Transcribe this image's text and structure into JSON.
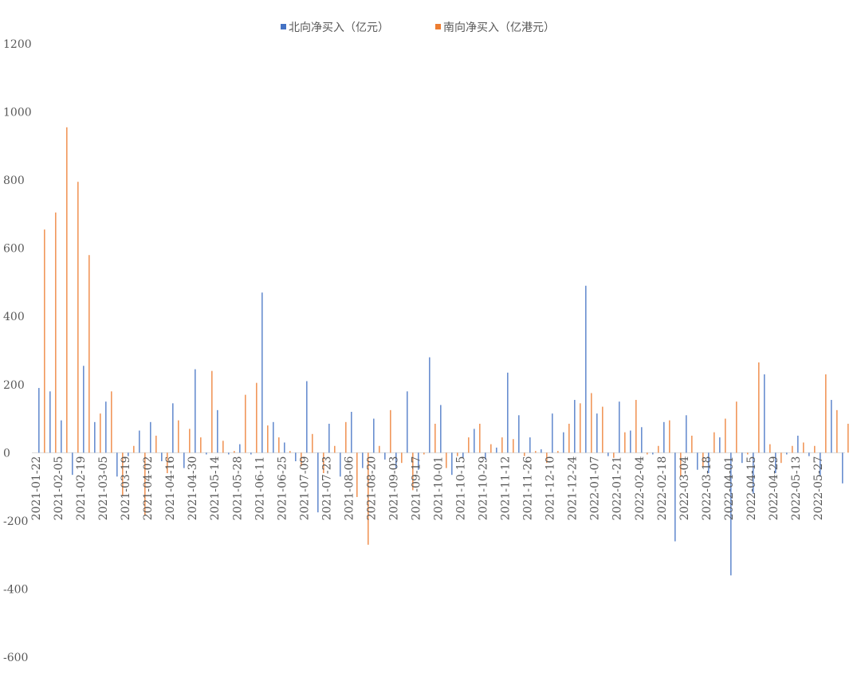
{
  "chart_data": {
    "type": "bar",
    "ylim": [
      -600,
      1200
    ],
    "yticks": [
      1200,
      1000,
      800,
      600,
      400,
      200,
      0,
      -200,
      -400,
      -600
    ],
    "grid": false,
    "legend_position": "top-center",
    "x_tick_labels": [
      "2021-01-22",
      "2021-02-05",
      "2021-02-19",
      "2021-03-05",
      "2021-03-19",
      "2021-04-02",
      "2021-04-16",
      "2021-04-30",
      "2021-05-14",
      "2021-05-28",
      "2021-06-11",
      "2021-06-25",
      "2021-07-09",
      "2021-07-23",
      "2021-08-06",
      "2021-08-20",
      "2021-09-03",
      "2021-09-17",
      "2021-10-01",
      "2021-10-15",
      "2021-10-29",
      "2021-11-12",
      "2021-11-26",
      "2021-12-10",
      "2021-12-24",
      "2022-01-07",
      "2022-01-21",
      "2022-02-04",
      "2022-02-18",
      "2022-03-04",
      "2022-03-18",
      "2022-04-01",
      "2022-04-15",
      "2022-04-29",
      "2022-05-13",
      "2022-05-27"
    ],
    "series": [
      {
        "name": "北向净买入（亿元）",
        "color": "#4472c4",
        "values": [
          190,
          180,
          95,
          -65,
          255,
          90,
          150,
          -70,
          -10,
          65,
          90,
          -25,
          145,
          -45,
          245,
          -5,
          125,
          -5,
          25,
          -5,
          470,
          90,
          30,
          -25,
          210,
          -175,
          85,
          -70,
          120,
          -45,
          100,
          -20,
          -45,
          180,
          -50,
          280,
          140,
          -65,
          -15,
          70,
          -20,
          15,
          235,
          110,
          45,
          10,
          115,
          60,
          155,
          490,
          115,
          -10,
          150,
          65,
          75,
          -5,
          90,
          -260,
          110,
          -50,
          -60,
          45,
          -360,
          -30,
          -120,
          230,
          -60,
          -5,
          50,
          -10,
          -70,
          155,
          -90
        ]
      },
      {
        "name": "南向净买入（亿港元）",
        "color": "#ed7d31",
        "values": [
          655,
          705,
          955,
          795,
          580,
          115,
          180,
          -125,
          20,
          -185,
          50,
          -60,
          95,
          70,
          45,
          240,
          35,
          5,
          170,
          205,
          80,
          45,
          5,
          -40,
          55,
          -60,
          20,
          90,
          -130,
          -270,
          20,
          125,
          -30,
          -110,
          -5,
          85,
          -45,
          -10,
          45,
          85,
          25,
          45,
          40,
          -10,
          5,
          -30,
          5,
          85,
          145,
          175,
          135,
          -15,
          60,
          155,
          -5,
          20,
          95,
          -70,
          50,
          -40,
          60,
          100,
          150,
          -5,
          265,
          25,
          -30,
          20,
          30,
          20,
          230,
          125,
          85
        ]
      }
    ]
  }
}
